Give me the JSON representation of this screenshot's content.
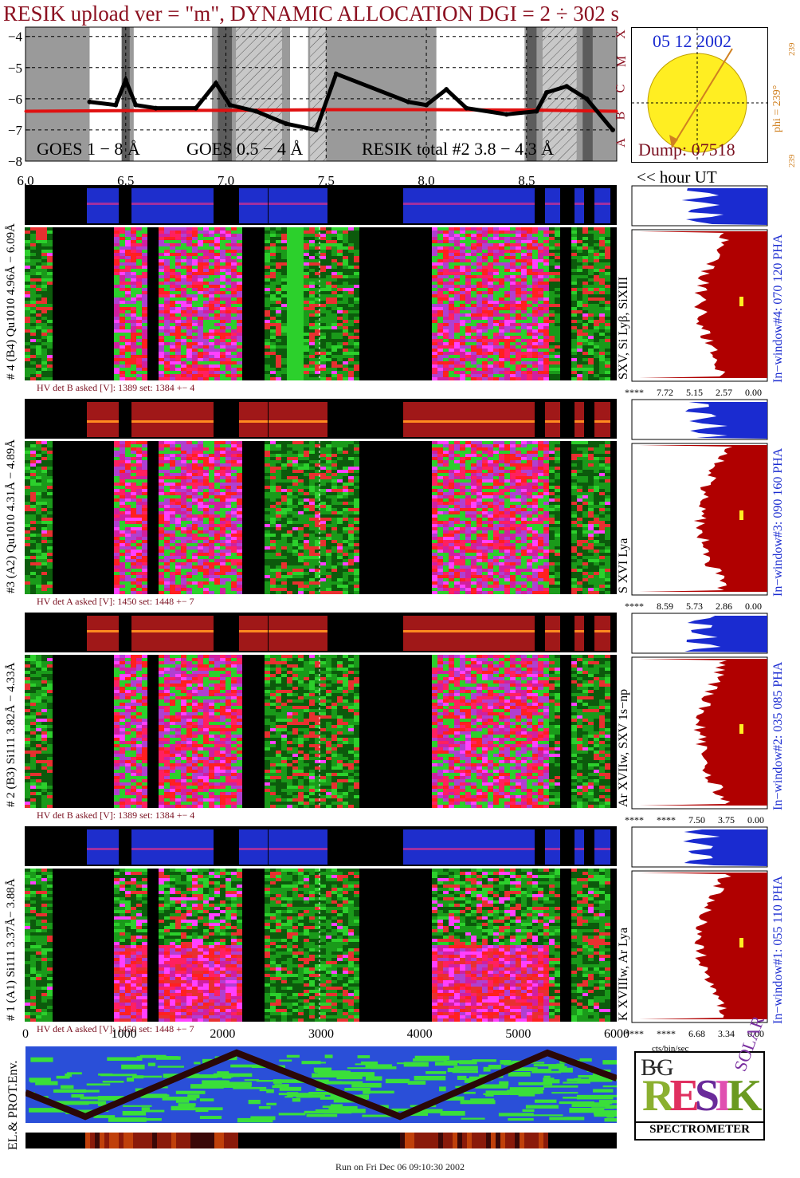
{
  "title": "RESIK upload ver = \"m\", DYNAMIC ALLOCATION  DGI =   2 ÷ 302 s",
  "colors": {
    "goes_long": "#e01010",
    "goes_short": "#1a2bd0",
    "resik": "#000000",
    "title": "#8b1020",
    "sun": "#ffee22",
    "hist_low": "#1a2bd0",
    "hist_high": "#b00000"
  },
  "goes_panel": {
    "y_ticks": [
      "−4",
      "−5",
      "−6",
      "−7",
      "−8"
    ],
    "x_ticks": [
      "6.0",
      "6.5",
      "7.0",
      "7.5",
      "8.0",
      "8.5"
    ],
    "class_letters": [
      "X",
      "M",
      "C",
      "B",
      "A"
    ],
    "legend_goes_long": "GOES 1 − 8 Å",
    "legend_goes_short": "GOES 0.5 − 4 Å",
    "legend_resik": "RESIK total #2  3.8 − 4.3 Å",
    "hour_label": "<< hour UT"
  },
  "chart_data": {
    "type": "line",
    "title": "RESIK upload ver = \"m\", DYNAMIC ALLOCATION  DGI =   2 ÷ 302 s",
    "xlabel": "hour UT",
    "ylabel": "",
    "xlim": [
      6.0,
      8.95
    ],
    "ylim": [
      -8,
      -3.7
    ],
    "series": [
      {
        "name": "GOES 1 − 8 Å",
        "x": [
          6.0,
          6.5,
          7.0,
          7.5,
          8.0,
          8.5,
          8.95
        ],
        "values": [
          -6.4,
          -6.38,
          -6.37,
          -6.35,
          -6.35,
          -6.36,
          -6.4
        ]
      },
      {
        "name": "RESIK total #2  3.8 − 4.3 Å",
        "x": [
          6.32,
          6.45,
          6.5,
          6.55,
          6.65,
          6.85,
          6.95,
          7.02,
          7.15,
          7.3,
          7.45,
          7.55,
          7.91,
          8.0,
          8.1,
          8.2,
          8.4,
          8.55,
          8.6,
          8.7,
          8.8,
          8.93
        ],
        "values": [
          -6.1,
          -6.2,
          -5.4,
          -6.2,
          -6.3,
          -6.3,
          -5.5,
          -6.2,
          -6.4,
          -6.8,
          -7.0,
          -5.2,
          -6.1,
          -6.2,
          -5.7,
          -6.3,
          -6.5,
          -6.4,
          -5.8,
          -5.6,
          -6.0,
          -7.0
        ]
      }
    ],
    "x_ticks": [
      "6.0",
      "6.5",
      "7.0",
      "7.5",
      "8.0",
      "8.5"
    ],
    "y_ticks": [
      "−4",
      "−5",
      "−6",
      "−7",
      "−8"
    ],
    "grid": true
  },
  "sun_panel": {
    "date": "05 12 2002",
    "dump": "Dump: 07518",
    "phi": "phi = 239°",
    "phi_small": "239",
    "phi_small2": "239"
  },
  "channels": [
    {
      "label": "# 4 (B4) Qu1010 4.96Å − 6.09Å",
      "lines": "SXV, Si Lyβ, SiXIII",
      "window": "In−window#4:  070 120 PHA",
      "hv": "HV det B asked [V]:  1389 set:  1384  +−    4",
      "scale": [
        "****",
        "7.72",
        "5.15",
        "2.57",
        "0.00"
      ]
    },
    {
      "label": "#3 (A2) Qu1010  4.31Å − 4.89Å",
      "lines": "S XVI Lya",
      "window": "In−window#3:  090 160 PHA",
      "hv": "HV det A asked [V]:  1450 set:  1448  +−    7",
      "scale": [
        "****",
        "8.59",
        "5.73",
        "2.86",
        "0.00"
      ]
    },
    {
      "label": "# 2 (B3) Si111  3.82Å − 4.33Å",
      "lines": "Ar XVIIw,  SXV 1s−np",
      "window": "In−window#2:  035 085 PHA",
      "hv": "HV det B asked [V]:  1389 set:  1384  +−    4",
      "scale": [
        "****",
        "****",
        "7.50",
        "3.75",
        "0.00"
      ]
    },
    {
      "label": "# 1 (A1) Si111  3.37Å− 3.88Å",
      "lines": "K XVIIIw, Ar Lya",
      "window": "In−window#1:  055 110 PHA",
      "hv": "HV det A asked [V]:  1450 set:  1448  +−    7",
      "scale": [
        "****",
        "****",
        "6.68",
        "3.34",
        "0.00"
      ]
    }
  ],
  "bottom_axis": {
    "ticks": [
      "0",
      "1000",
      "2000",
      "3000",
      "4000",
      "5000",
      "6000"
    ],
    "units": "cts/bin/sec"
  },
  "env_label": "EL.& PROT.Env.",
  "logo": {
    "top_letters": "B̶G",
    "resik": "RESIK",
    "solar": "SOLAR",
    "caption": "SPECTROMETER"
  },
  "footer": "Run on Fri Dec 06 09:10:30 2002"
}
